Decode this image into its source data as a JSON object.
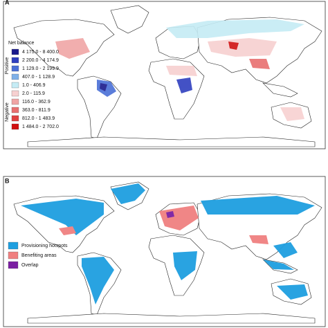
{
  "panel_a": {
    "letter": "A",
    "legend_title": "Net balance",
    "positive_label": "Positive",
    "negative_label": "Negative",
    "legend": [
      {
        "label": "4 175.0 - 8 400.0",
        "color": "#1a1a8c"
      },
      {
        "label": "2 200.0 - 4 174.9",
        "color": "#2f3fbf"
      },
      {
        "label": "1 129.0 - 2 199.9",
        "color": "#4a6fd6"
      },
      {
        "label": "407.0 - 1 128.9",
        "color": "#7fb0e8"
      },
      {
        "label": "1.0 - 406.9",
        "color": "#c5ecf5"
      },
      {
        "label": "2.0 - 115.9",
        "color": "#f7d0d0"
      },
      {
        "label": "116.0 - 362.9",
        "color": "#f0a5a5"
      },
      {
        "label": "363.0 - 811.9",
        "color": "#e87070"
      },
      {
        "label": "812.0 - 1 483.9",
        "color": "#e04040"
      },
      {
        "label": "1 484.0 - 2 702.0",
        "color": "#d01010"
      }
    ]
  },
  "panel_b": {
    "letter": "B",
    "legend": [
      {
        "label": "Provisioning hotspots",
        "color": "#1e9fe0"
      },
      {
        "label": "Benefiting areas",
        "color": "#f08080"
      },
      {
        "label": "Overlap",
        "color": "#7b1fa2"
      }
    ]
  }
}
